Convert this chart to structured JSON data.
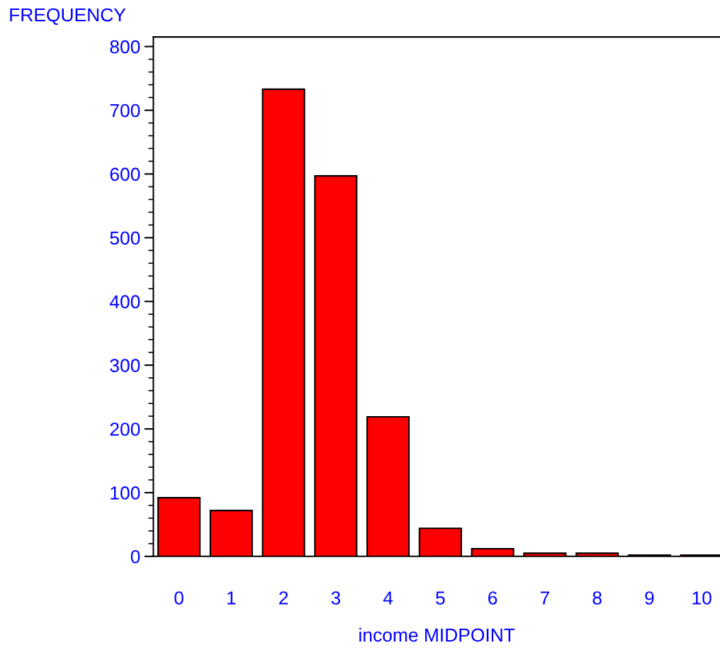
{
  "chart_data": {
    "type": "bar",
    "xlabel": "income MIDPOINT",
    "ylabel": "FREQUENCY",
    "categories": [
      "0",
      "1",
      "2",
      "3",
      "4",
      "5",
      "6",
      "7",
      "8",
      "9",
      "10"
    ],
    "values": [
      92,
      72,
      733,
      597,
      219,
      44,
      12,
      5,
      5,
      2,
      2
    ],
    "color": "#ff0000",
    "ylim": [
      0,
      815
    ],
    "yticks": [
      0,
      100,
      200,
      300,
      400,
      500,
      600,
      700,
      800
    ],
    "grid": false,
    "legend": false
  }
}
